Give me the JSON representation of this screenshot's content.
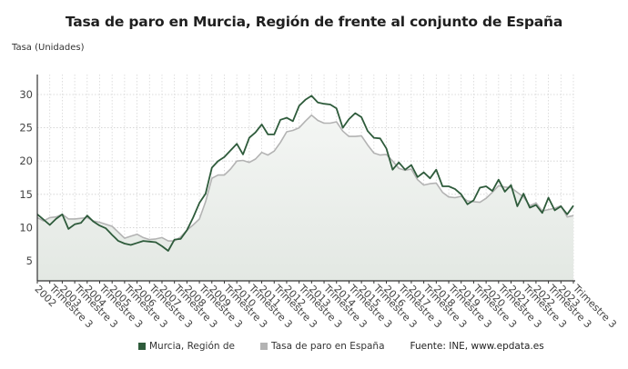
{
  "title": "Tasa de paro en Murcia, Región de frente al conjunto de España",
  "y_axis_label": "Tasa (Unidades)",
  "legend": {
    "items": [
      {
        "label": "Murcia, Región de",
        "color": "#2e5b3b",
        "icon": "square-swatch"
      },
      {
        "label": "Tasa de paro en España",
        "color": "#b3b3b3",
        "icon": "square-swatch"
      }
    ],
    "source": "Fuente: INE, www.epdata.es"
  },
  "chart_data": {
    "type": "line",
    "title": "Tasa de paro en Murcia, Región de frente al conjunto de España",
    "xlabel": "",
    "ylabel": "Tasa (Unidades)",
    "ylim": [
      2,
      33
    ],
    "yticks": [
      5,
      10,
      15,
      20,
      25,
      30
    ],
    "grid": true,
    "legend_position": "bottom",
    "x_tick_labels": [
      "2002 Trimestre 3",
      "2003 Trimestre 3",
      "2004 Trimestre 3",
      "2005 Trimestre 3",
      "2006 Trimestre 3",
      "2007 Trimestre 3",
      "2008 Trimestre 3",
      "2009 Trimestre 3",
      "2010 Trimestre 3",
      "2011 Trimestre 3",
      "2012 Trimestre 3",
      "2013 Trimestre 3",
      "2014 Trimestre 3",
      "2015 Trimestre 3",
      "2016 Trimestre 3",
      "2017 Trimestre 3",
      "2018 Trimestre 3",
      "2019 Trimestre 3",
      "2020 Trimestre 3",
      "2021 Trimestre 3",
      "2022 Trimestre 3",
      "2023 Trimestre 3"
    ],
    "x_start": "2002 Trimestre 1",
    "x_end": "2023 Trimestre 3",
    "x_step": "quarter",
    "series": [
      {
        "name": "Murcia, Región de",
        "color": "#2e5b3b",
        "values": [
          12.0,
          11.2,
          10.4,
          11.3,
          12.0,
          9.8,
          10.5,
          10.7,
          11.8,
          10.9,
          10.3,
          9.9,
          8.9,
          8.0,
          7.6,
          7.4,
          7.7,
          8.0,
          7.9,
          7.8,
          7.2,
          6.5,
          8.2,
          8.3,
          9.6,
          11.5,
          13.7,
          15.1,
          19.0,
          20.0,
          20.6,
          21.6,
          22.6,
          21.0,
          23.5,
          24.3,
          25.5,
          24.0,
          24.0,
          26.2,
          26.5,
          26.0,
          28.3,
          29.2,
          29.8,
          28.8,
          28.6,
          28.5,
          27.9,
          25.0,
          26.3,
          27.2,
          26.6,
          24.5,
          23.5,
          23.4,
          21.9,
          18.7,
          19.8,
          18.7,
          19.4,
          17.6,
          18.3,
          17.4,
          18.7,
          16.2,
          16.2,
          15.8,
          15.0,
          13.5,
          14.1,
          16.0,
          16.2,
          15.5,
          17.2,
          15.4,
          16.4,
          13.2,
          15.1,
          13.0,
          13.4,
          12.2,
          14.5,
          12.6,
          13.2,
          12.0,
          13.3
        ]
      },
      {
        "name": "Tasa de paro en España",
        "color": "#b3b3b3",
        "values": [
          11.5,
          11.0,
          11.5,
          11.6,
          12.0,
          11.3,
          11.3,
          11.4,
          11.5,
          11.0,
          10.8,
          10.5,
          10.2,
          9.3,
          8.4,
          8.7,
          9.0,
          8.5,
          8.2,
          8.3,
          8.5,
          8.0,
          8.0,
          8.6,
          9.6,
          10.4,
          11.3,
          13.9,
          17.4,
          17.9,
          17.9,
          18.8,
          20.0,
          20.1,
          19.8,
          20.3,
          21.3,
          20.9,
          21.5,
          22.8,
          24.4,
          24.6,
          25.0,
          26.0,
          26.9,
          26.1,
          25.7,
          25.7,
          25.9,
          24.5,
          23.7,
          23.7,
          23.8,
          22.4,
          21.2,
          20.9,
          21.0,
          20.0,
          18.9,
          18.6,
          18.8,
          17.2,
          16.4,
          16.6,
          16.7,
          15.3,
          14.6,
          14.5,
          14.7,
          14.0,
          13.9,
          13.8,
          14.4,
          15.3,
          16.3,
          16.1,
          16.0,
          15.3,
          14.6,
          13.3,
          13.7,
          12.5,
          12.7,
          12.9,
          13.3,
          11.6,
          11.8
        ]
      }
    ]
  }
}
